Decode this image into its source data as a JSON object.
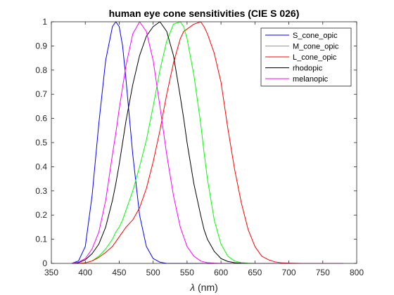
{
  "chart_data": {
    "type": "line",
    "title": "human eye cone sensitivities (CIE S 026)",
    "xlabel_symbol": "λ",
    "xlabel_unit": " (nm)",
    "ylabel": "",
    "xlim": [
      350,
      800
    ],
    "ylim": [
      0,
      1
    ],
    "xticks": [
      350,
      400,
      450,
      500,
      550,
      600,
      650,
      700,
      750,
      800
    ],
    "yticks": [
      0,
      0.1,
      0.2,
      0.3,
      0.4,
      0.5,
      0.6,
      0.7,
      0.8,
      0.9,
      1
    ],
    "ytick_labels": [
      "0",
      "0.1",
      "0.2",
      "0.3",
      "0.4",
      "0.5",
      "0.6",
      "0.7",
      "0.8",
      "0.9",
      "1"
    ],
    "grid": false,
    "legend_position": "top-right",
    "x": [
      380,
      390,
      400,
      410,
      420,
      430,
      440,
      445,
      450,
      455,
      460,
      470,
      480,
      490,
      500,
      510,
      520,
      530,
      540,
      545,
      550,
      560,
      570,
      575,
      580,
      590,
      600,
      610,
      620,
      630,
      640,
      650,
      660,
      670,
      680,
      690,
      700,
      720,
      750,
      780
    ],
    "series": [
      {
        "name": "S_cone_opic",
        "color": "#0000ff",
        "values": [
          0.0,
          0.01,
          0.07,
          0.28,
          0.58,
          0.84,
          0.98,
          1.0,
          0.98,
          0.9,
          0.76,
          0.45,
          0.2,
          0.07,
          0.02,
          0.005,
          0.0,
          0.0,
          0.0,
          0.0,
          0.0,
          0.0,
          0.0,
          0.0,
          0.0,
          0.0,
          0.0,
          0.0,
          0.0,
          0.0,
          0.0,
          0.0,
          0.0,
          0.0,
          0.0,
          0.0,
          0.0,
          0.0,
          0.0,
          0.0
        ]
      },
      {
        "name": "M_cone_opic",
        "color": "#00ff00",
        "values": [
          0.0,
          0.0,
          0.002,
          0.01,
          0.03,
          0.06,
          0.1,
          0.13,
          0.15,
          0.18,
          0.22,
          0.3,
          0.4,
          0.51,
          0.65,
          0.8,
          0.92,
          0.99,
          1.0,
          0.98,
          0.93,
          0.78,
          0.58,
          0.46,
          0.35,
          0.18,
          0.08,
          0.03,
          0.01,
          0.003,
          0.001,
          0.0,
          0.0,
          0.0,
          0.0,
          0.0,
          0.0,
          0.0,
          0.0,
          0.0
        ]
      },
      {
        "name": "L_cone_opic",
        "color": "#ff0000",
        "values": [
          0.0,
          0.0,
          0.002,
          0.01,
          0.025,
          0.045,
          0.07,
          0.09,
          0.11,
          0.13,
          0.15,
          0.18,
          0.23,
          0.31,
          0.42,
          0.55,
          0.7,
          0.83,
          0.93,
          0.96,
          0.97,
          0.99,
          1.0,
          0.98,
          0.95,
          0.87,
          0.75,
          0.56,
          0.39,
          0.25,
          0.14,
          0.07,
          0.03,
          0.015,
          0.006,
          0.002,
          0.001,
          0.0,
          0.0,
          0.0
        ]
      },
      {
        "name": "rhodopic",
        "color": "#000000",
        "values": [
          0.0,
          0.003,
          0.015,
          0.04,
          0.08,
          0.15,
          0.26,
          0.33,
          0.41,
          0.5,
          0.59,
          0.74,
          0.86,
          0.94,
          0.98,
          1.0,
          0.96,
          0.86,
          0.69,
          0.6,
          0.5,
          0.33,
          0.2,
          0.14,
          0.1,
          0.05,
          0.02,
          0.008,
          0.003,
          0.001,
          0.0,
          0.0,
          0.0,
          0.0,
          0.0,
          0.0,
          0.0,
          0.0,
          0.0,
          0.0
        ]
      },
      {
        "name": "melanopic",
        "color": "#ff00ff",
        "values": [
          0.0,
          0.005,
          0.02,
          0.06,
          0.13,
          0.26,
          0.45,
          0.54,
          0.64,
          0.73,
          0.82,
          0.95,
          1.0,
          0.96,
          0.84,
          0.65,
          0.45,
          0.28,
          0.15,
          0.11,
          0.07,
          0.03,
          0.01,
          0.006,
          0.003,
          0.001,
          0.0,
          0.0,
          0.0,
          0.0,
          0.0,
          0.0,
          0.0,
          0.0,
          0.0,
          0.0,
          0.0,
          0.0,
          0.0,
          0.0
        ]
      }
    ]
  }
}
